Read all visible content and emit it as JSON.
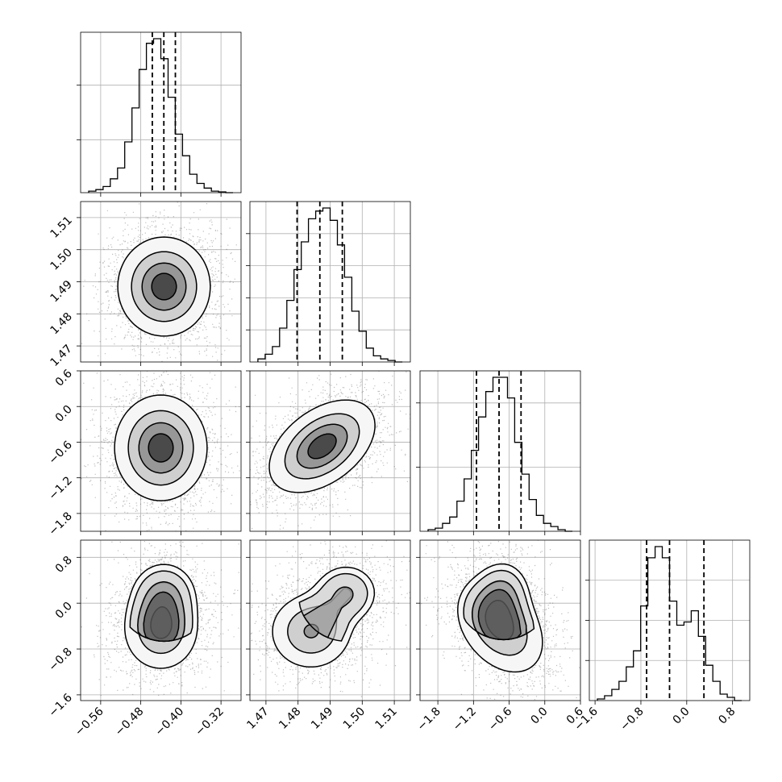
{
  "chart_data": {
    "type": "corner",
    "grid": true,
    "parameters": [
      {
        "range": [
          -0.6,
          -0.28
        ],
        "ticks": [
          -0.56,
          -0.48,
          -0.4,
          -0.32
        ],
        "tick_labels": [
          "−0.56",
          "−0.48",
          "−0.40",
          "−0.32"
        ],
        "quantiles": [
          -0.457,
          -0.434,
          -0.411
        ],
        "histogram": [
          0.01,
          0.02,
          0.04,
          0.09,
          0.16,
          0.33,
          0.55,
          0.8,
          0.97,
          1.0,
          0.87,
          0.62,
          0.38,
          0.24,
          0.12,
          0.06,
          0.03,
          0.01,
          0.005,
          0.0
        ],
        "hist_ticks": [
          0.33,
          0.67
        ]
      },
      {
        "range": [
          1.465,
          1.515
        ],
        "ticks": [
          1.47,
          1.48,
          1.49,
          1.5,
          1.51
        ],
        "tick_labels": [
          "1.47",
          "1.48",
          "1.49",
          "1.50",
          "1.51"
        ],
        "quantiles": [
          1.4797,
          1.4868,
          1.4938
        ],
        "histogram": [
          0.02,
          0.05,
          0.1,
          0.22,
          0.4,
          0.6,
          0.78,
          0.93,
          0.98,
          1.0,
          0.92,
          0.76,
          0.55,
          0.33,
          0.2,
          0.09,
          0.04,
          0.02,
          0.01,
          0.0
        ],
        "hist_ticks": [
          0.2,
          0.4,
          0.6,
          0.8
        ]
      },
      {
        "range": [
          -2.1,
          0.6
        ],
        "ticks": [
          -1.8,
          -1.2,
          -0.6,
          0.0,
          0.6
        ],
        "tick_labels": [
          "−1.8",
          "−1.2",
          "−0.6",
          "0.0",
          "0.6"
        ],
        "quantiles": [
          -1.15,
          -0.77,
          -0.4
        ],
        "histogram": [
          0.01,
          0.02,
          0.05,
          0.09,
          0.19,
          0.33,
          0.51,
          0.72,
          0.88,
          0.97,
          0.97,
          0.84,
          0.56,
          0.36,
          0.2,
          0.1,
          0.05,
          0.03,
          0.01,
          0.0
        ],
        "hist_ticks": [
          0.4,
          0.8
        ]
      },
      {
        "range": [
          -1.7,
          1.1
        ],
        "ticks": [
          -1.6,
          -0.8,
          0.0,
          0.8
        ],
        "tick_labels": [
          "−1.6",
          "−0.8",
          "0.0",
          "0.8"
        ],
        "quantiles": [
          -0.7,
          -0.3,
          0.3
        ],
        "histogram": [
          0.01,
          0.03,
          0.07,
          0.12,
          0.21,
          0.31,
          0.59,
          0.89,
          0.96,
          0.89,
          0.62,
          0.47,
          0.49,
          0.56,
          0.4,
          0.22,
          0.12,
          0.04,
          0.02,
          0.0
        ],
        "hist_ticks": [
          0.25,
          0.5,
          0.75
        ]
      }
    ]
  }
}
